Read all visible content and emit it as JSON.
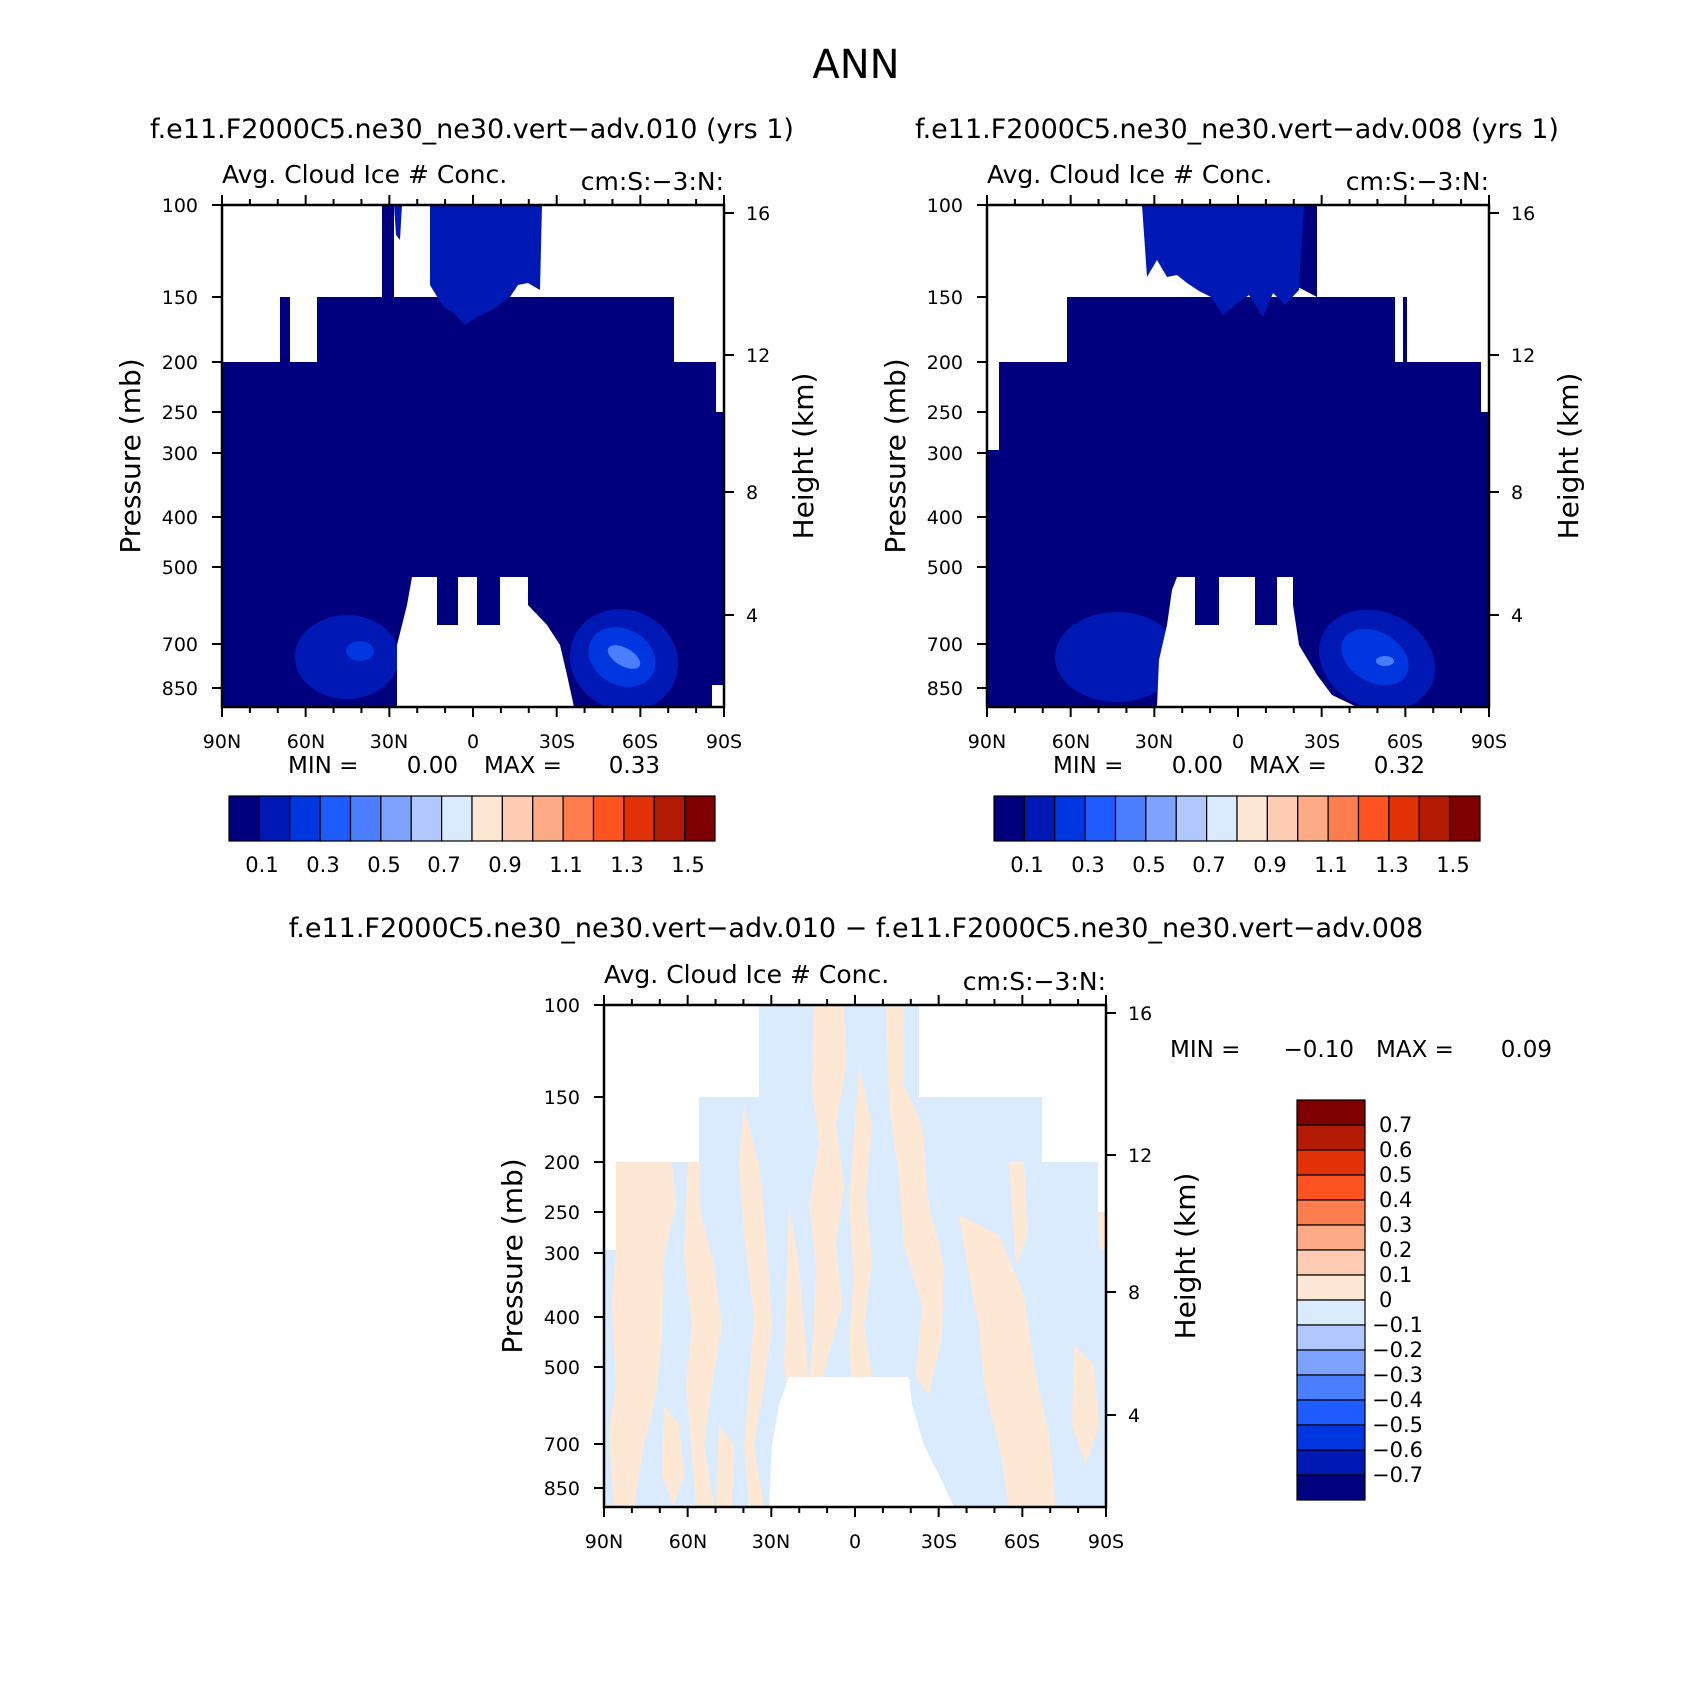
{
  "page_title": "ANN",
  "chart_data": [
    {
      "type": "heatmap",
      "title": "f.e11.F2000C5.ne30_ne30.vert−adv.010 (yrs 1)",
      "subtitle_left": "Avg. Cloud Ice # Conc.",
      "subtitle_right": "cm:S:−3:N:",
      "ylabel": "Pressure (mb)",
      "ylabel_right": "Height (km)",
      "x_ticks": [
        "90N",
        "60N",
        "30N",
        "0",
        "30S",
        "60S",
        "90S"
      ],
      "y_ticks": [
        "100",
        "150",
        "200",
        "250",
        "300",
        "400",
        "500",
        "700",
        "850"
      ],
      "y_ticks_right": [
        "16",
        "12",
        "8",
        "4"
      ],
      "ylim": [
        100,
        930
      ],
      "log_scale_y": true,
      "min_label": "MIN =",
      "min_value": "0.00",
      "max_label": "MAX =",
      "max_value": "0.33",
      "colorbar": {
        "orientation": "horizontal",
        "colors": [
          "#00007f",
          "#0019b4",
          "#0036e0",
          "#1f5cff",
          "#4a7eff",
          "#7ea2ff",
          "#b1c8ff",
          "#d9ebfc",
          "#fde8d5",
          "#fdccb2",
          "#fdaa86",
          "#fd7d4e",
          "#fc5320",
          "#e03206",
          "#b31a04",
          "#7f0000"
        ],
        "labels": [
          "0.1",
          "0.3",
          "0.5",
          "0.7",
          "0.9",
          "1.1",
          "1.3",
          "1.5"
        ]
      },
      "fill_value_color": "#00007f"
    },
    {
      "type": "heatmap",
      "title": "f.e11.F2000C5.ne30_ne30.vert−adv.008 (yrs 1)",
      "subtitle_left": "Avg. Cloud Ice # Conc.",
      "subtitle_right": "cm:S:−3:N:",
      "ylabel": "Pressure (mb)",
      "ylabel_right": "Height (km)",
      "x_ticks": [
        "90N",
        "60N",
        "30N",
        "0",
        "30S",
        "60S",
        "90S"
      ],
      "y_ticks": [
        "100",
        "150",
        "200",
        "250",
        "300",
        "400",
        "500",
        "700",
        "850"
      ],
      "y_ticks_right": [
        "16",
        "12",
        "8",
        "4"
      ],
      "ylim": [
        100,
        930
      ],
      "log_scale_y": true,
      "min_label": "MIN =",
      "min_value": "0.00",
      "max_label": "MAX =",
      "max_value": "0.32",
      "colorbar": {
        "orientation": "horizontal",
        "colors": [
          "#00007f",
          "#0019b4",
          "#0036e0",
          "#1f5cff",
          "#4a7eff",
          "#7ea2ff",
          "#b1c8ff",
          "#d9ebfc",
          "#fde8d5",
          "#fdccb2",
          "#fdaa86",
          "#fd7d4e",
          "#fc5320",
          "#e03206",
          "#b31a04",
          "#7f0000"
        ],
        "labels": [
          "0.1",
          "0.3",
          "0.5",
          "0.7",
          "0.9",
          "1.1",
          "1.3",
          "1.5"
        ]
      },
      "fill_value_color": "#00007f"
    },
    {
      "type": "heatmap",
      "title": "f.e11.F2000C5.ne30_ne30.vert−adv.010 − f.e11.F2000C5.ne30_ne30.vert−adv.008",
      "subtitle_left": "Avg. Cloud Ice # Conc.",
      "subtitle_right": "cm:S:−3:N:",
      "ylabel": "Pressure (mb)",
      "ylabel_right": "Height (km)",
      "x_ticks": [
        "90N",
        "60N",
        "30N",
        "0",
        "30S",
        "60S",
        "90S"
      ],
      "y_ticks": [
        "100",
        "150",
        "200",
        "250",
        "300",
        "400",
        "500",
        "700",
        "850"
      ],
      "y_ticks_right": [
        "16",
        "12",
        "8",
        "4"
      ],
      "ylim": [
        100,
        930
      ],
      "log_scale_y": true,
      "min_label": "MIN =",
      "min_value": "−0.10",
      "max_label": "MAX =",
      "max_value": "0.09",
      "colorbar": {
        "orientation": "vertical",
        "colors": [
          "#7f0000",
          "#b31a04",
          "#e03206",
          "#fc5320",
          "#fd7d4e",
          "#fdaa86",
          "#fdccb2",
          "#fde8d5",
          "#d9ebfc",
          "#b1c8ff",
          "#7ea2ff",
          "#4a7eff",
          "#1f5cff",
          "#0036e0",
          "#0019b4",
          "#00007f"
        ],
        "labels": [
          "0.7",
          "0.6",
          "0.5",
          "0.4",
          "0.3",
          "0.2",
          "0.1",
          "0",
          "−0.1",
          "−0.2",
          "−0.3",
          "−0.4",
          "−0.5",
          "−0.6",
          "−0.7"
        ]
      },
      "positive_color": "#fde8d5",
      "negative_color": "#d9ebfc"
    }
  ]
}
